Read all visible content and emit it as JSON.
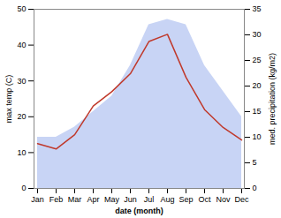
{
  "chart_data": {
    "type": "line",
    "categories": [
      "Jan",
      "Feb",
      "Mar",
      "Apr",
      "May",
      "Jun",
      "Jul",
      "Aug",
      "Sep",
      "Oct",
      "Nov",
      "Dec"
    ],
    "xlabel": "date (month)",
    "ylabel": "max temp (C)",
    "y2label": "med. precipitation (kg/m2)",
    "ylim": [
      0,
      50
    ],
    "yticks": [
      0,
      10,
      20,
      30,
      40,
      50
    ],
    "y2lim": [
      0,
      35
    ],
    "y2ticks": [
      0,
      5,
      10,
      15,
      20,
      25,
      30,
      35
    ],
    "series": [
      {
        "type": "area",
        "axis": "y2",
        "color": "#c8d4f5",
        "values": [
          10,
          10,
          12,
          15,
          18,
          24,
          32,
          33,
          32,
          24,
          19,
          14
        ]
      },
      {
        "type": "line",
        "color": "#c0392b",
        "values": [
          12.5,
          11,
          15,
          23,
          27,
          32,
          41,
          43,
          31,
          22,
          17,
          13.5
        ]
      }
    ]
  }
}
